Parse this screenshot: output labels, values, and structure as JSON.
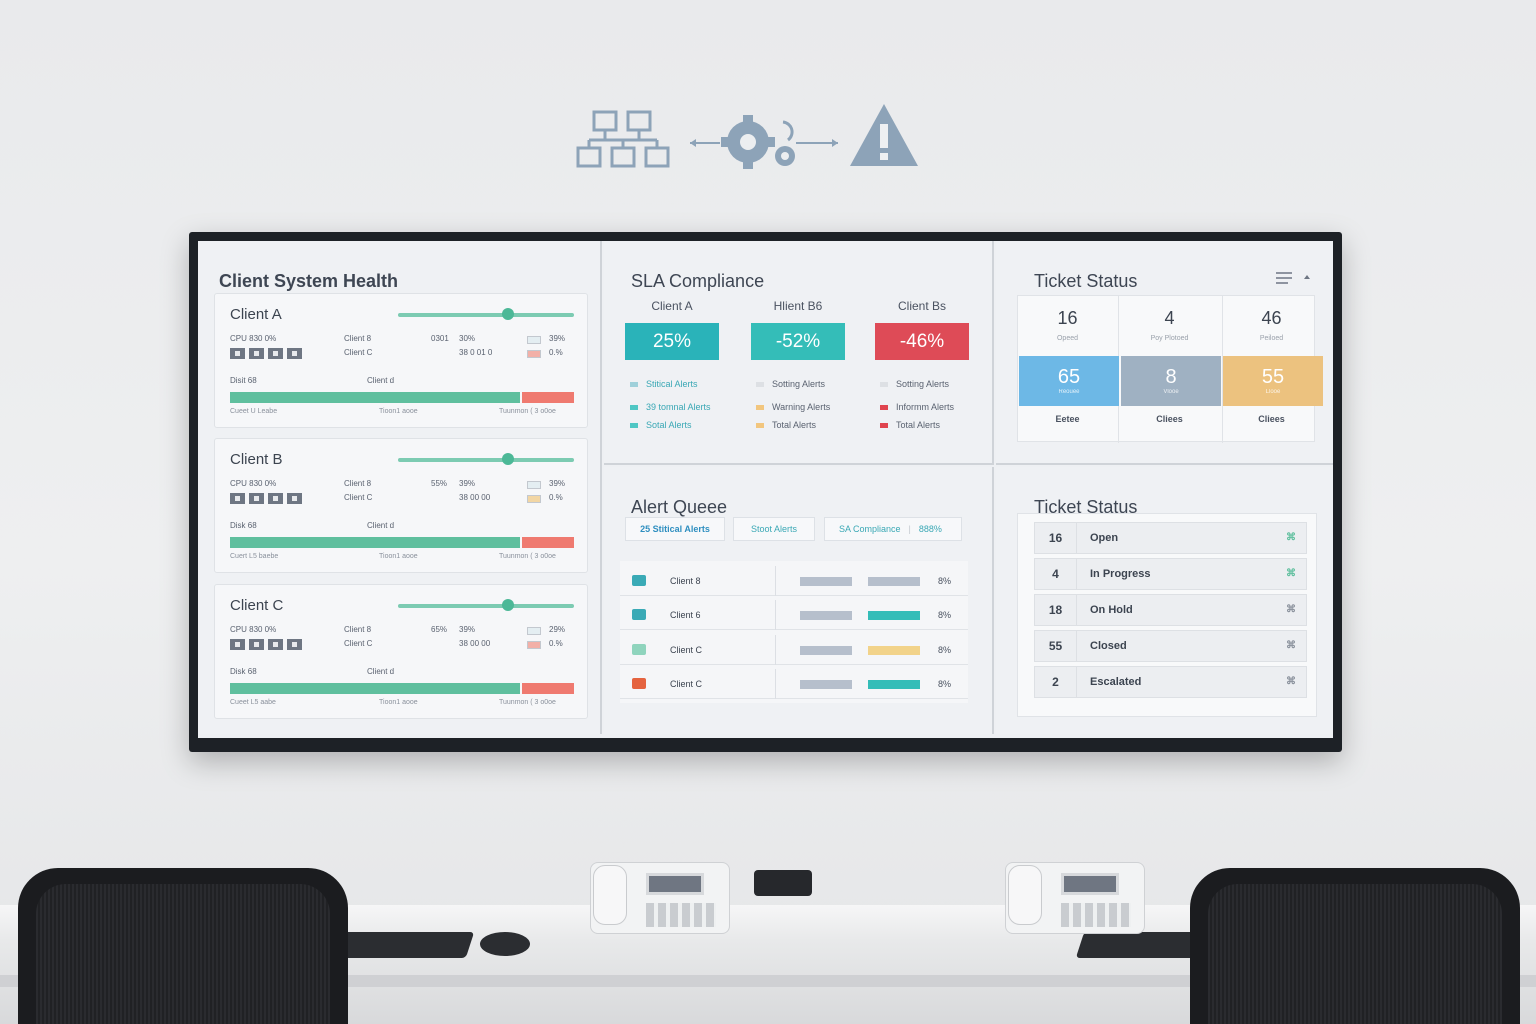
{
  "top_icons": [
    "network-icon",
    "gears-icon",
    "warning-icon"
  ],
  "health": {
    "title": "Client System Health",
    "cards": [
      {
        "name": "Client A",
        "cpu": "CPU 830 0%",
        "c1": "Client 8",
        "c2": "Client C",
        "m1": "0301",
        "m2": "30%",
        "m3": "38 0 01 0",
        "p1": "39%",
        "p2": "0.%",
        "disk": "Disit 68",
        "clientd": "Client d",
        "f1": "Cueet U Leabe",
        "f2": "Tioon1 aooe",
        "f3": "Tuunmon ( 3 o0oe",
        "sw2": "#f2b0a8"
      },
      {
        "name": "Client B",
        "cpu": "CPU 830 0%",
        "c1": "Client 8",
        "c2": "Client C",
        "m1": "55%",
        "m2": "39%",
        "m3": "38 00 00",
        "p1": "39%",
        "p2": "0.%",
        "disk": "Disk 68",
        "clientd": "Client d",
        "f1": "Cuert L5 baebe",
        "f2": "Tioon1 aooe",
        "f3": "Tuunmon ( 3 o0oe",
        "sw2": "#f2d6a4"
      },
      {
        "name": "Client C",
        "cpu": "CPU 830 0%",
        "c1": "Client 8",
        "c2": "Client C",
        "m1": "65%",
        "m2": "39%",
        "m3": "38 00 00",
        "p1": "29%",
        "p2": "0.%",
        "disk": "Disk 68",
        "clientd": "Client d",
        "f1": "Cueet L5 aabe",
        "f2": "Tioon1 aooe",
        "f3": "Tuunmon ( 3 o0oe",
        "sw2": "#f2b0a8"
      }
    ]
  },
  "sla": {
    "title": "SLA Compliance",
    "cols": [
      {
        "client": "Client A",
        "pct": "25%",
        "color": "#2ab3b9",
        "l1": "Stitical Alerts",
        "l2": "39 tomnal Alerts",
        "l3": "Sotal Alerts",
        "c1": "#9fd0da",
        "c2": "#4fc7c4",
        "c3": "#4fc7c4"
      },
      {
        "client": "Hlient B6",
        "pct": "-52%",
        "color": "#34bdb8",
        "l1": "Sotting Alerts",
        "l2": "Warning Alerts",
        "l3": "Total Alerts",
        "c1": "#dde0e4",
        "c2": "#f2c67e",
        "c3": "#f2c67e"
      },
      {
        "client": "Client Bs",
        "pct": "-46%",
        "color": "#de4b57",
        "l1": "Sotting Alerts",
        "l2": "Informm Alerts",
        "l3": "Total Alerts",
        "c1": "#dde0e4",
        "c2": "#e0444f",
        "c3": "#e0444f"
      }
    ]
  },
  "ticket_status": {
    "title": "Ticket Status",
    "top": [
      {
        "n": "16",
        "l": "Opeed"
      },
      {
        "n": "4",
        "l": "Poy Plotoed"
      },
      {
        "n": "46",
        "l": "Peiloed"
      }
    ],
    "blocks": [
      {
        "n": "65",
        "l": "Reouee",
        "color": "#6db8e6"
      },
      {
        "n": "8",
        "l": "Vlooe",
        "color": "#9fb1c2"
      },
      {
        "n": "55",
        "l": "Llooe",
        "color": "#ecc27f"
      }
    ],
    "foot": [
      "Eetee",
      "Cliees",
      "Cliees"
    ]
  },
  "alert_queue": {
    "title": "Alert Queee",
    "tabs": [
      "25 Stitical Alerts",
      "Stoot Alerts",
      "SA Compliance",
      "888%"
    ],
    "rows": [
      {
        "name": "Client 8",
        "icon": "#3aaab6",
        "bar2": "#b6bfcc",
        "pct": "8%"
      },
      {
        "name": "Client 6",
        "icon": "#3aaab6",
        "bar2": "#34bdb8",
        "pct": "8%"
      },
      {
        "name": "Client C",
        "icon": "#8fd4bd",
        "bar2": "#f2d38a",
        "pct": "8%"
      },
      {
        "name": "Client C",
        "icon": "#e5633f",
        "bar2": "#34bdb8",
        "pct": "8%"
      }
    ]
  },
  "ticket_list": {
    "title": "Ticket Status",
    "rows": [
      {
        "n": "16",
        "label": "Open",
        "x": "⌘",
        "color": "#5fbf9e"
      },
      {
        "n": "4",
        "label": "In Progress",
        "x": "⌘",
        "color": "#5fbf9e"
      },
      {
        "n": "18",
        "label": "On Hold",
        "x": "⌘",
        "color": "#8a919c"
      },
      {
        "n": "55",
        "label": "Closed",
        "x": "⌘",
        "color": "#8a919c"
      },
      {
        "n": "2",
        "label": "Escalated",
        "x": "⌘",
        "color": "#8a919c"
      }
    ]
  }
}
